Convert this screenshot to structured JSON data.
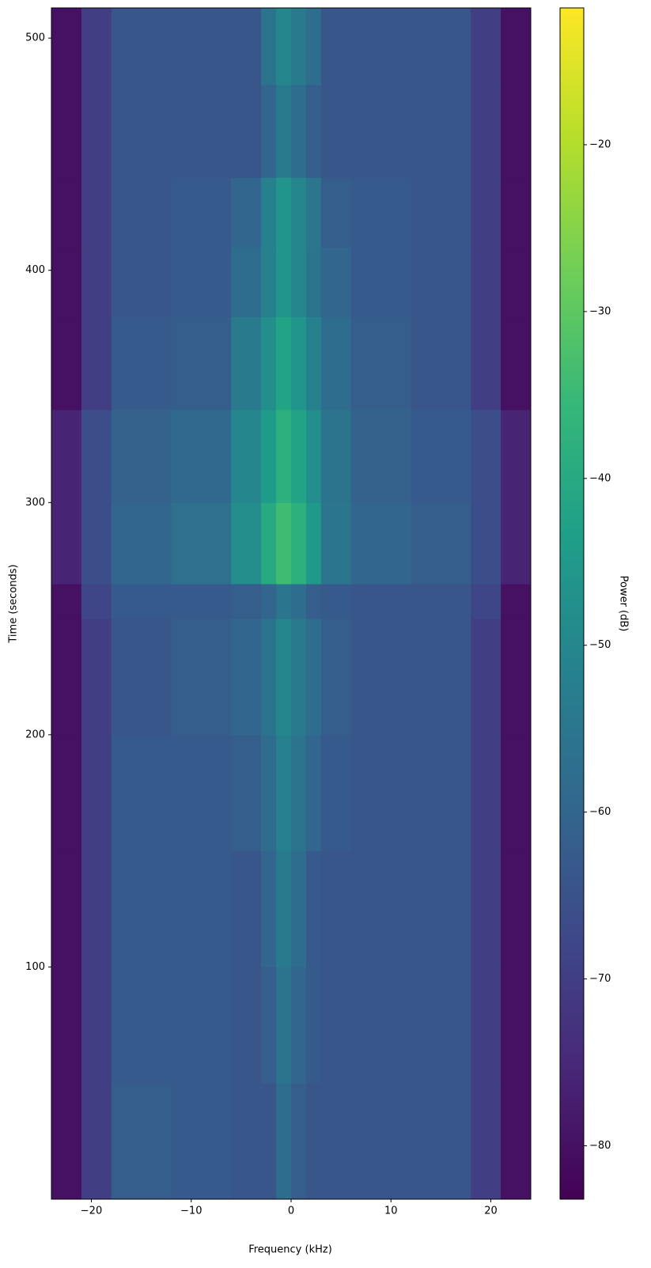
{
  "chart_data": {
    "type": "spectrogram",
    "xlabel": "Frequency (kHz)",
    "ylabel": "Time (seconds)",
    "colorbar_label": "Power (dB)",
    "colormap": [
      "#440154",
      "#482878",
      "#3e4989",
      "#31688e",
      "#26828e",
      "#1f9e89",
      "#35b779",
      "#6ece58",
      "#b5de2b",
      "#fde725"
    ],
    "xlim": [
      -24,
      24
    ],
    "ylim": [
      0,
      513
    ],
    "clim": [
      -83.2,
      -11.8
    ],
    "xticks": [
      {
        "value": -20,
        "label": "−20"
      },
      {
        "value": -10,
        "label": "−10"
      },
      0,
      10,
      20
    ],
    "yticks": [
      100,
      200,
      300,
      400,
      500
    ],
    "cticks": [
      {
        "value": -80,
        "label": "−80"
      },
      {
        "value": -70,
        "label": "−70"
      },
      {
        "value": -60,
        "label": "−60"
      },
      {
        "value": -50,
        "label": "−50"
      },
      {
        "value": -40,
        "label": "−40"
      },
      {
        "value": -30,
        "label": "−30"
      },
      {
        "value": -20,
        "label": "−20"
      }
    ],
    "x_edges": [
      -24,
      -21,
      -18,
      -12,
      -6,
      -3,
      -1.5,
      0,
      1.5,
      3,
      6,
      12,
      18,
      21,
      24
    ],
    "y_edges": [
      0,
      50,
      100,
      150,
      200,
      250,
      265,
      300,
      340,
      380,
      410,
      440,
      480,
      513
    ],
    "values": [
      [
        -80,
        -70,
        -62,
        -63,
        -64,
        -64,
        -58,
        -62,
        -64,
        -64,
        -64,
        -64,
        -70,
        -80
      ],
      [
        -80,
        -70,
        -63,
        -63,
        -64,
        -62,
        -56,
        -60,
        -63,
        -64,
        -64,
        -64,
        -70,
        -80
      ],
      [
        -80,
        -70,
        -63,
        -63,
        -64,
        -60,
        -54,
        -58,
        -63,
        -64,
        -64,
        -64,
        -70,
        -80
      ],
      [
        -80,
        -70,
        -63,
        -63,
        -62,
        -58,
        -52,
        -56,
        -60,
        -63,
        -64,
        -64,
        -70,
        -80
      ],
      [
        -80,
        -70,
        -64,
        -62,
        -60,
        -56,
        -50,
        -54,
        -58,
        -62,
        -64,
        -64,
        -70,
        -80
      ],
      [
        -80,
        -68,
        -63,
        -63,
        -62,
        -60,
        -55,
        -58,
        -62,
        -63,
        -64,
        -64,
        -68,
        -80
      ],
      [
        -76,
        -66,
        -60,
        -57,
        -48,
        -40,
        -34,
        -38,
        -45,
        -55,
        -60,
        -62,
        -66,
        -76
      ],
      [
        -76,
        -66,
        -61,
        -59,
        -50,
        -44,
        -38,
        -42,
        -48,
        -56,
        -61,
        -63,
        -66,
        -76
      ],
      [
        -80,
        -70,
        -63,
        -62,
        -54,
        -48,
        -42,
        -46,
        -52,
        -58,
        -62,
        -64,
        -70,
        -80
      ],
      [
        -80,
        -70,
        -64,
        -63,
        -58,
        -52,
        -46,
        -50,
        -56,
        -60,
        -63,
        -64,
        -70,
        -80
      ],
      [
        -80,
        -70,
        -64,
        -63,
        -60,
        -52,
        -46,
        -50,
        -55,
        -62,
        -63,
        -64,
        -70,
        -80
      ],
      [
        -80,
        -70,
        -64,
        -64,
        -64,
        -60,
        -54,
        -58,
        -62,
        -64,
        -64,
        -64,
        -70,
        -80
      ],
      [
        -80,
        -70,
        -64,
        -64,
        -64,
        -56,
        -50,
        -54,
        -58,
        -64,
        -64,
        -64,
        -70,
        -80
      ]
    ]
  }
}
